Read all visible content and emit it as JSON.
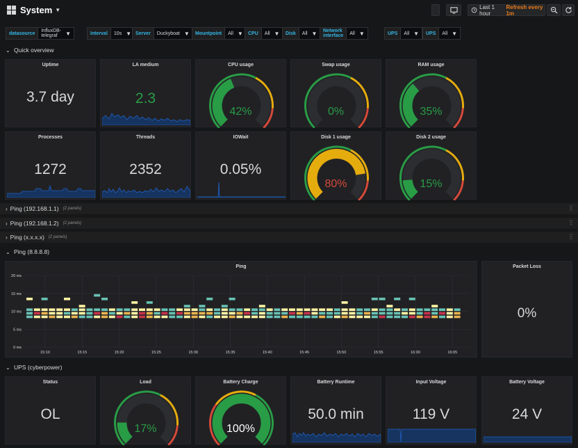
{
  "header": {
    "title": "System",
    "time_range": "Last 1 hour",
    "refresh": "Refresh every 1m"
  },
  "variables": [
    {
      "label": "datasource",
      "value": "InfluxDB-telegraf"
    },
    {
      "label": "Interval",
      "value": "10s"
    },
    {
      "label": "Server",
      "value": "Duckyboat"
    },
    {
      "label": "Mountpoint",
      "value": "All"
    },
    {
      "label": "CPU",
      "value": "All"
    },
    {
      "label": "Disk",
      "value": "All"
    },
    {
      "label": "Network interface",
      "value": "All"
    },
    {
      "label": "UPS",
      "value": "All"
    },
    {
      "label": "UPS",
      "value": "All"
    }
  ],
  "rows": {
    "quick": "Quick overview",
    "ping1": {
      "title": "Ping (192.168.1.1)",
      "count": "(2 panels)"
    },
    "ping2": {
      "title": "Ping (192.168.1.2)",
      "count": "(2 panels)"
    },
    "ping3": {
      "title": "Ping (x.x.x.x)",
      "count": "(2 panels)"
    },
    "ping8": "Ping (8.8.8.8)",
    "ups": "UPS (cyberpower)"
  },
  "panels": {
    "uptime": {
      "title": "Uptime",
      "value": "3.7 day"
    },
    "la": {
      "title": "LA medium",
      "value": "2.3"
    },
    "cpu": {
      "title": "CPU usage",
      "value": "42%",
      "percent": 42
    },
    "swap": {
      "title": "Swap usage",
      "value": "0%",
      "percent": 0
    },
    "ram": {
      "title": "RAM usage",
      "value": "35%",
      "percent": 35
    },
    "processes": {
      "title": "Processes",
      "value": "1272"
    },
    "threads": {
      "title": "Threads",
      "value": "2352"
    },
    "iowait": {
      "title": "IOWait",
      "value": "0.05%"
    },
    "disk1": {
      "title": "Disk 1 usage",
      "value": "80%",
      "percent": 80
    },
    "disk2": {
      "title": "Disk 2 usage",
      "value": "15%",
      "percent": 15
    },
    "ping": {
      "title": "Ping"
    },
    "packet_loss": {
      "title": "Packet Loss",
      "value": "0%"
    },
    "ups_status": {
      "title": "Status",
      "value": "OL"
    },
    "load": {
      "title": "Load",
      "value": "17%",
      "percent": 17
    },
    "battery_charge": {
      "title": "Battery Charge",
      "value": "100%",
      "percent": 100
    },
    "battery_runtime": {
      "title": "Battery Runtime",
      "value": "50.0 min"
    },
    "input_voltage": {
      "title": "Input Voltage",
      "value": "119 V"
    },
    "battery_voltage": {
      "title": "Battery Voltage",
      "value": "24 V"
    }
  },
  "chart_data": {
    "type": "heatmap",
    "title": "Ping",
    "y_ticks": [
      "20 ms",
      "15 ms",
      "10 ms",
      "5 ms",
      "0 ms"
    ],
    "x_ticks": [
      "15:10",
      "15:15",
      "15:20",
      "15:25",
      "15:30",
      "15:35",
      "15:40",
      "15:45",
      "15:50",
      "15:55",
      "16:00",
      "16:05"
    ],
    "ylim": [
      0,
      20
    ],
    "grid": true
  },
  "colors": {
    "green": "#299c46",
    "orange": "#e5ac0e",
    "red": "#d44a3a",
    "blue": "#1f60c4",
    "text": "#d8d9da",
    "bg": "#161719",
    "panel": "#212124"
  }
}
